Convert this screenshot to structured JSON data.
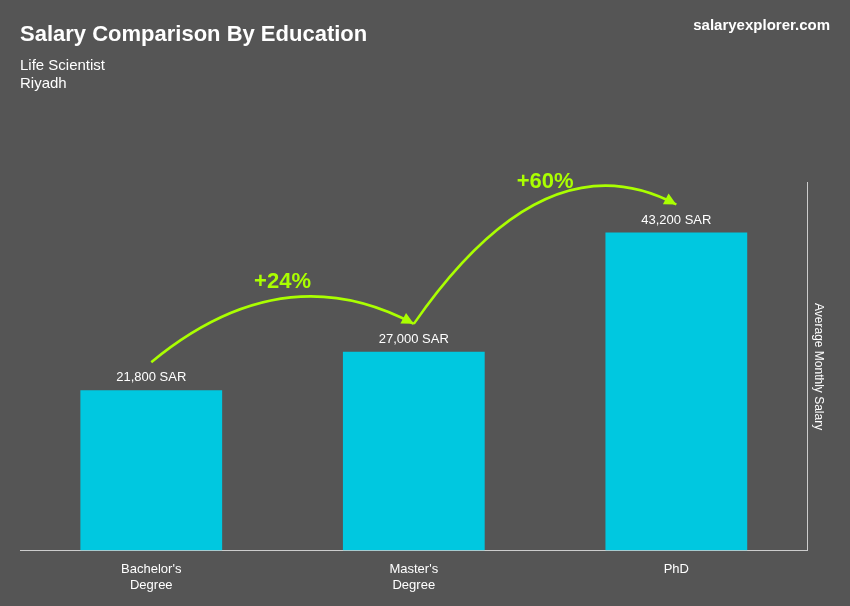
{
  "chart_data": {
    "type": "bar",
    "title": "Salary Comparison By Education",
    "subtitle": [
      "Life Scientist",
      "Riyadh"
    ],
    "ylabel": "Average Monthly Salary",
    "categories": [
      "Bachelor's\nDegree",
      "Master's\nDegree",
      "PhD"
    ],
    "values": [
      21800,
      27000,
      43200
    ],
    "value_labels": [
      "21,800 SAR",
      "27,000 SAR",
      "43,200 SAR"
    ],
    "data_labels": true,
    "color": "#00c8e0",
    "ylim": [
      0,
      50000
    ],
    "grid": false,
    "tick_labels": "x",
    "annotations": [
      {
        "text": "+24%",
        "from": "Bachelor's\nDegree",
        "to": "Master's\nDegree",
        "color": "#aaff00"
      },
      {
        "text": "+60%",
        "from": "Master's\nDegree",
        "to": "PhD",
        "color": "#aaff00"
      },
      {
        "text": "salaryexplorer.com"
      }
    ]
  }
}
